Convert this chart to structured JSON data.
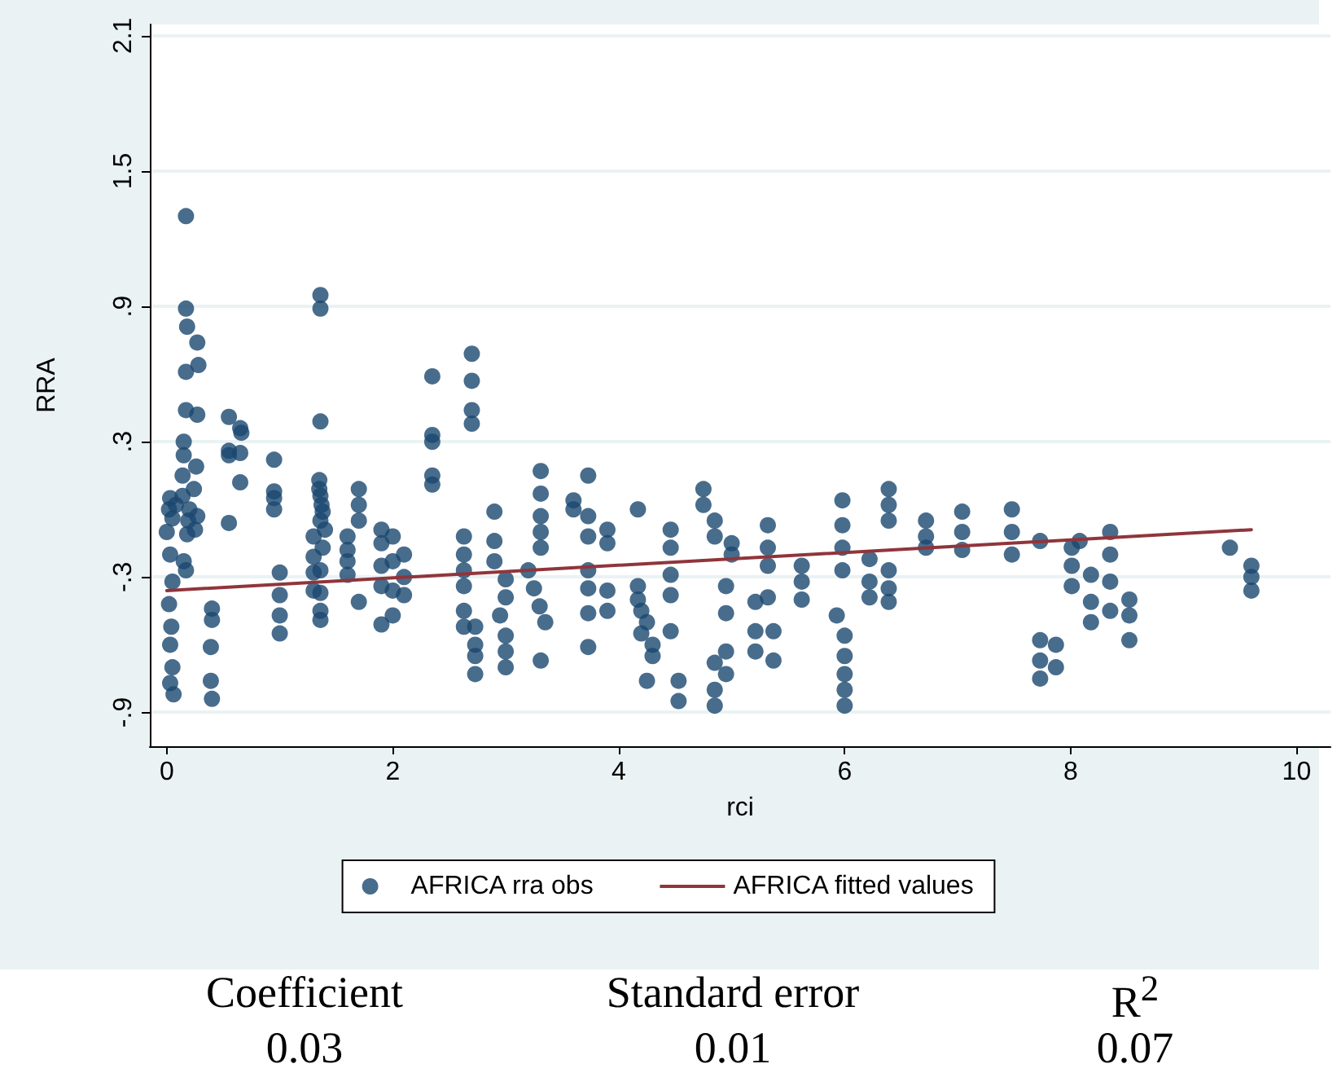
{
  "chart_data": {
    "type": "scatter",
    "xlabel": "rci",
    "ylabel": "RRA",
    "xlim": [
      -0.15,
      10.3
    ],
    "xticks": [
      0,
      2,
      4,
      6,
      8,
      10
    ],
    "ylim": [
      -1.05,
      2.15
    ],
    "yticks": [
      {
        "value": -0.9,
        "label": "-.9"
      },
      {
        "value": -0.3,
        "label": "-.3"
      },
      {
        "value": 0.3,
        "label": ".3"
      },
      {
        "value": 0.9,
        "label": ".9"
      },
      {
        "value": 1.5,
        "label": "1.5"
      },
      {
        "value": 2.1,
        "label": "2.1"
      }
    ],
    "grid": "y",
    "legend": "bottom",
    "marker": "circle",
    "series": [
      {
        "name": "AFRICA rra obs",
        "color": "#1a476f",
        "x": [
          0.02,
          0.05,
          0.0,
          0.03,
          0.05,
          0.02,
          0.04,
          0.03,
          0.05,
          0.03,
          0.06,
          0.03,
          0.08,
          0.17,
          0.17,
          0.18,
          0.17,
          0.17,
          0.15,
          0.15,
          0.14,
          0.14,
          0.2,
          0.19,
          0.18,
          0.15,
          0.17,
          0.27,
          0.28,
          0.27,
          0.26,
          0.24,
          0.27,
          0.25,
          0.4,
          0.4,
          0.39,
          0.39,
          0.4,
          0.55,
          0.55,
          0.55,
          0.55,
          0.65,
          0.66,
          0.65,
          0.65,
          0.95,
          0.95,
          0.95,
          0.95,
          1.0,
          1.0,
          1.0,
          1.0,
          1.3,
          1.3,
          1.3,
          1.3,
          1.36,
          1.36,
          1.36,
          1.35,
          1.35,
          1.36,
          1.37,
          1.38,
          1.36,
          1.4,
          1.38,
          1.36,
          1.36,
          1.36,
          1.36,
          1.6,
          1.6,
          1.6,
          1.6,
          1.7,
          1.7,
          1.7,
          1.7,
          1.9,
          1.9,
          1.9,
          1.9,
          1.9,
          2.0,
          2.0,
          2.0,
          2.0,
          2.1,
          2.1,
          2.1,
          2.35,
          2.35,
          2.35,
          2.35,
          2.35,
          2.7,
          2.7,
          2.7,
          2.7,
          2.63,
          2.63,
          2.63,
          2.63,
          2.63,
          2.63,
          2.73,
          2.73,
          2.73,
          2.73,
          2.9,
          2.9,
          2.9,
          3.0,
          3.0,
          2.95,
          3.0,
          3.0,
          3.0,
          3.31,
          3.31,
          3.31,
          3.31,
          3.31,
          3.2,
          3.25,
          3.3,
          3.35,
          3.31,
          3.6,
          3.6,
          3.73,
          3.73,
          3.73,
          3.9,
          3.9,
          3.73,
          3.73,
          3.73,
          3.9,
          3.9,
          3.73,
          4.17,
          4.17,
          4.17,
          4.2,
          4.25,
          4.2,
          4.3,
          4.3,
          4.25,
          4.46,
          4.46,
          4.46,
          4.46,
          4.46,
          4.53,
          4.53,
          4.75,
          4.75,
          4.85,
          4.85,
          4.85,
          4.85,
          4.85,
          4.95,
          4.95,
          4.95,
          4.95,
          5.0,
          5.0,
          5.21,
          5.21,
          5.21,
          5.32,
          5.32,
          5.32,
          5.32,
          5.37,
          5.37,
          5.62,
          5.62,
          5.62,
          5.93,
          5.98,
          5.98,
          5.98,
          5.98,
          6.0,
          6.0,
          6.0,
          6.0,
          6.0,
          6.22,
          6.22,
          6.22,
          6.39,
          6.39,
          6.39,
          6.39,
          6.39,
          6.39,
          6.72,
          6.72,
          6.72,
          7.04,
          7.04,
          7.04,
          7.48,
          7.48,
          7.48,
          7.73,
          7.73,
          7.73,
          7.73,
          7.87,
          7.87,
          8.01,
          8.01,
          8.01,
          8.08,
          8.18,
          8.18,
          8.18,
          8.35,
          8.35,
          8.35,
          8.35,
          8.52,
          8.52,
          8.52,
          9.41,
          9.6,
          9.6,
          9.6
        ],
        "values": [
          0.0,
          -0.04,
          -0.1,
          -0.2,
          -0.32,
          -0.42,
          -0.52,
          -0.6,
          -0.7,
          -0.77,
          -0.82,
          0.05,
          0.02,
          1.3,
          0.89,
          0.81,
          0.61,
          0.44,
          0.3,
          0.24,
          0.15,
          0.06,
          0.0,
          -0.05,
          -0.11,
          -0.23,
          -0.27,
          0.74,
          0.64,
          0.42,
          0.19,
          0.09,
          -0.03,
          -0.09,
          -0.44,
          -0.49,
          -0.61,
          -0.76,
          -0.84,
          0.41,
          0.26,
          0.24,
          -0.06,
          0.36,
          0.34,
          0.25,
          0.12,
          0.22,
          0.08,
          0.05,
          0.0,
          -0.28,
          -0.38,
          -0.47,
          -0.55,
          -0.12,
          -0.21,
          -0.28,
          -0.36,
          0.95,
          0.89,
          0.39,
          0.13,
          0.09,
          0.06,
          0.02,
          -0.01,
          -0.05,
          -0.09,
          -0.17,
          -0.27,
          -0.37,
          -0.45,
          -0.49,
          -0.12,
          -0.18,
          -0.23,
          -0.29,
          0.09,
          0.02,
          -0.05,
          -0.41,
          -0.09,
          -0.15,
          -0.25,
          -0.34,
          -0.51,
          -0.12,
          -0.23,
          -0.36,
          -0.47,
          -0.2,
          -0.3,
          -0.38,
          0.59,
          0.33,
          0.3,
          0.15,
          0.11,
          0.69,
          0.57,
          0.44,
          0.38,
          -0.12,
          -0.2,
          -0.27,
          -0.34,
          -0.45,
          -0.52,
          -0.52,
          -0.6,
          -0.65,
          -0.73,
          -0.01,
          -0.14,
          -0.23,
          -0.31,
          -0.39,
          -0.47,
          -0.56,
          -0.63,
          -0.7,
          0.17,
          0.07,
          -0.03,
          -0.1,
          -0.17,
          -0.27,
          -0.35,
          -0.43,
          -0.5,
          -0.67,
          0.04,
          0.0,
          0.15,
          -0.03,
          -0.12,
          -0.09,
          -0.15,
          -0.27,
          -0.35,
          -0.46,
          -0.36,
          -0.45,
          -0.61,
          0.0,
          -0.34,
          -0.4,
          -0.45,
          -0.5,
          -0.55,
          -0.6,
          -0.65,
          -0.76,
          -0.09,
          -0.17,
          -0.29,
          -0.38,
          -0.54,
          -0.76,
          -0.85,
          0.09,
          0.02,
          -0.05,
          -0.12,
          -0.68,
          -0.8,
          -0.87,
          -0.34,
          -0.46,
          -0.63,
          -0.73,
          -0.15,
          -0.2,
          -0.41,
          -0.54,
          -0.63,
          -0.07,
          -0.17,
          -0.25,
          -0.39,
          -0.54,
          -0.67,
          -0.25,
          -0.32,
          -0.4,
          -0.47,
          0.04,
          -0.07,
          -0.17,
          -0.27,
          -0.56,
          -0.65,
          -0.73,
          -0.8,
          -0.87,
          -0.22,
          -0.32,
          -0.39,
          0.09,
          0.02,
          -0.05,
          -0.27,
          -0.35,
          -0.41,
          -0.05,
          -0.12,
          -0.17,
          -0.01,
          -0.1,
          -0.18,
          0.0,
          -0.1,
          -0.2,
          -0.14,
          -0.58,
          -0.67,
          -0.75,
          -0.6,
          -0.7,
          -0.17,
          -0.25,
          -0.34,
          -0.14,
          -0.29,
          -0.41,
          -0.5,
          -0.1,
          -0.2,
          -0.32,
          -0.45,
          -0.4,
          -0.47,
          -0.58,
          -0.17,
          -0.25,
          -0.3,
          -0.36
        ]
      },
      {
        "name": "AFRICA fitted values",
        "type": "line",
        "color": "#90353b",
        "marker": "none",
        "x": [
          0,
          9.6
        ],
        "values": [
          -0.36,
          -0.09
        ]
      }
    ],
    "annotations": [
      "Coefficient",
      "Standard error",
      "R$^{2}$",
      "0.03",
      "0.01",
      "0.07"
    ]
  }
}
